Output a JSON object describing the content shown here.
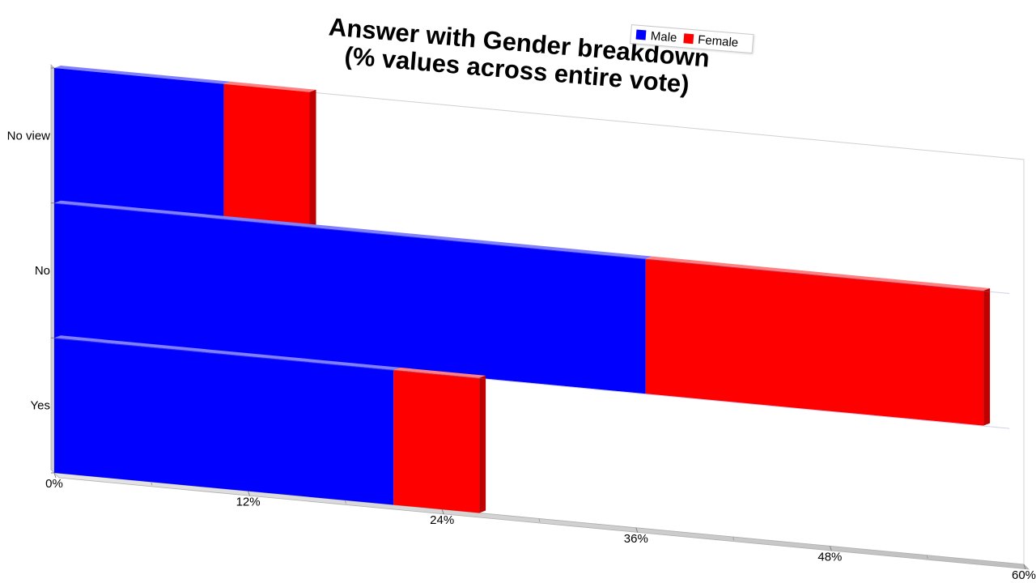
{
  "chart_data": {
    "type": "bar",
    "orientation": "horizontal",
    "stacked": true,
    "title_lines": [
      "Answer with Gender breakdown",
      "(% values across entire vote)"
    ],
    "categories": [
      "No view",
      "No",
      "Yes"
    ],
    "series": [
      {
        "name": "Male",
        "values": [
          10.5,
          36.6,
          21.0
        ]
      },
      {
        "name": "Female",
        "values": [
          5.3,
          20.9,
          5.3
        ]
      }
    ],
    "x_ticks": [
      "0%",
      "12%",
      "24%",
      "36%",
      "48%",
      "60%"
    ],
    "xlim": [
      0,
      60
    ],
    "legend_position": "top-right",
    "grid": false
  },
  "colors": {
    "Male": "#0000ff",
    "Female": "#ff0000"
  }
}
